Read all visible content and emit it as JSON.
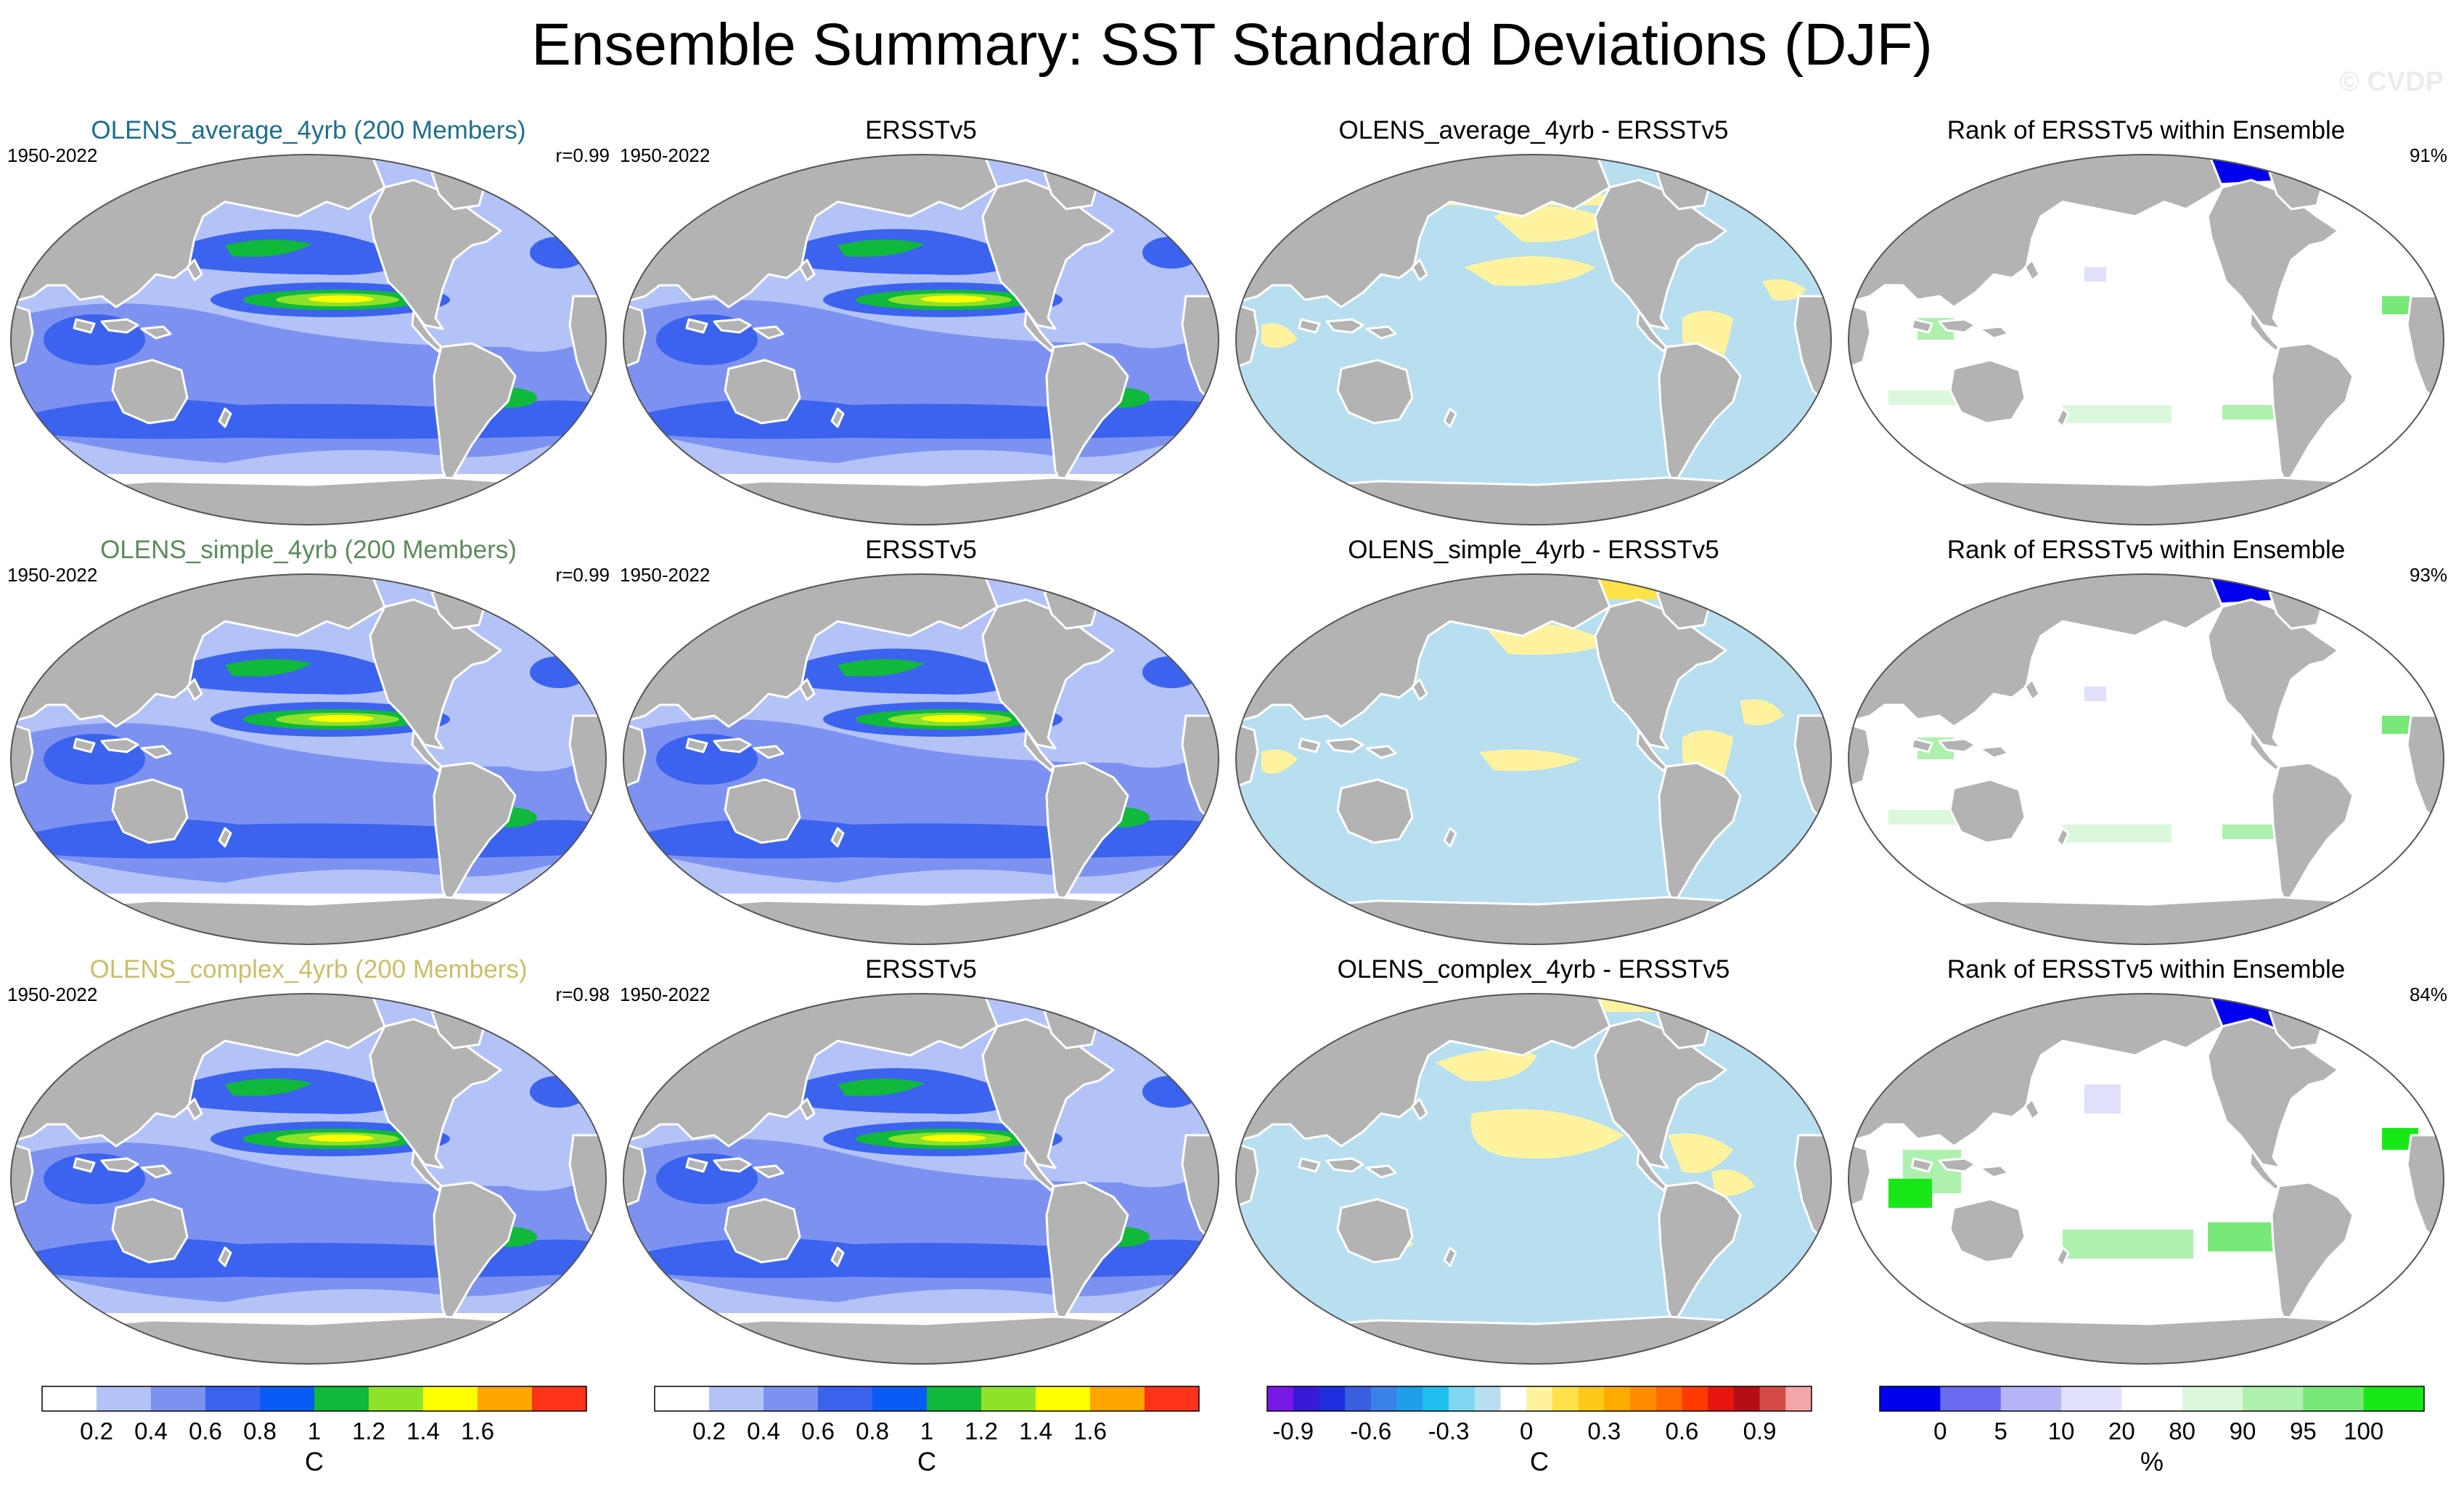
{
  "figure": {
    "title": "Ensemble Summary: SST Standard Deviations (DJF)",
    "watermark": "© CVDP"
  },
  "style": {
    "ocean_land_color": "#b3b3b3",
    "coast_color": "#ffffff",
    "ensemble_title_colors": [
      "#1f6e8c",
      "#5c8a5c",
      "#c8bf6b"
    ]
  },
  "rows": [
    {
      "ensemble": {
        "title": "OLENS_average_4yrb (200 Members)",
        "period": "1950-2022",
        "corr": "r=0.99"
      },
      "obs": {
        "title": "ERSSTv5",
        "period": "1950-2022"
      },
      "diff": {
        "title": "OLENS_average_4yrb - ERSSTv5"
      },
      "rank": {
        "title": "Rank of ERSSTv5 within Ensemble",
        "pct": "91%"
      }
    },
    {
      "ensemble": {
        "title": "OLENS_simple_4yrb (200 Members)",
        "period": "1950-2022",
        "corr": "r=0.99"
      },
      "obs": {
        "title": "ERSSTv5",
        "period": "1950-2022"
      },
      "diff": {
        "title": "OLENS_simple_4yrb - ERSSTv5"
      },
      "rank": {
        "title": "Rank of ERSSTv5 within Ensemble",
        "pct": "93%"
      }
    },
    {
      "ensemble": {
        "title": "OLENS_complex_4yrb (200 Members)",
        "period": "1950-2022",
        "corr": "r=0.98"
      },
      "obs": {
        "title": "ERSSTv5",
        "period": "1950-2022"
      },
      "diff": {
        "title": "OLENS_complex_4yrb - ERSSTv5"
      },
      "rank": {
        "title": "Rank of ERSSTv5 within Ensemble",
        "pct": "84%"
      }
    }
  ],
  "colorbars": {
    "sst": {
      "colors": [
        "#ffffff",
        "#b4c3f7",
        "#7d92f0",
        "#3b63ee",
        "#0a5bf5",
        "#10b83c",
        "#8ee22a",
        "#ffff00",
        "#ffa500",
        "#ff3319"
      ],
      "ticks": [
        "0.2",
        "0.4",
        "0.6",
        "0.8",
        "1",
        "1.2",
        "1.4",
        "1.6"
      ],
      "unit": "C"
    },
    "diff": {
      "colors": [
        "#7a18e6",
        "#3a18d8",
        "#1f2fe0",
        "#3a5fe0",
        "#3b82e8",
        "#1e9fe8",
        "#1fc0f0",
        "#7fd6f2",
        "#b8dff0",
        "#ffffff",
        "#fff3a0",
        "#ffe24a",
        "#ffc91a",
        "#ffaa00",
        "#ff8a00",
        "#ff6a00",
        "#ff3a00",
        "#e8150e",
        "#b60e16",
        "#d44a48",
        "#f5a6a8"
      ],
      "ticks": [
        "-0.9",
        "-0.6",
        "-0.3",
        "0",
        "0.3",
        "0.6",
        "0.9"
      ],
      "unit": "C"
    },
    "rank": {
      "colors": [
        "#0000ee",
        "#6a6af2",
        "#b4b4f7",
        "#e0e0fb",
        "#ffffff",
        "#dcf8dc",
        "#aef0ae",
        "#78e878",
        "#18e818"
      ],
      "ticks": [
        "0",
        "5",
        "10",
        "20",
        "80",
        "90",
        "95",
        "100"
      ],
      "unit": "%"
    }
  }
}
